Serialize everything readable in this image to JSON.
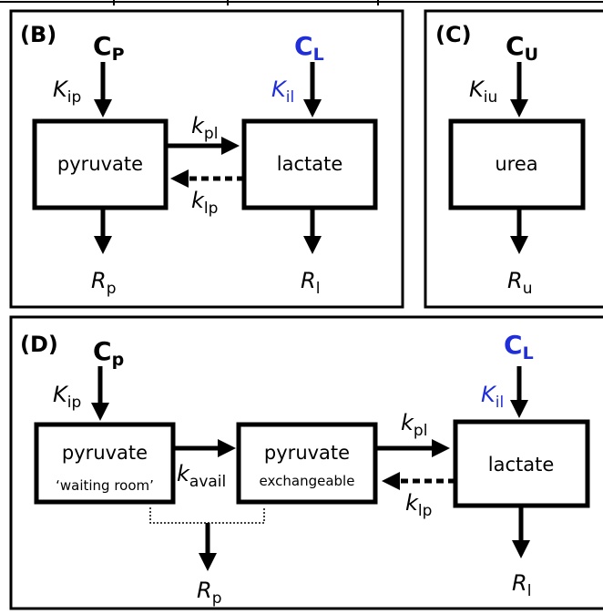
{
  "panel_b": {
    "label": "(B)",
    "pyruvate": {
      "label": "pyruvate",
      "input": {
        "main": "C",
        "sub": "P"
      },
      "input_rate": {
        "main": "K",
        "sub": "ip"
      },
      "output": {
        "main": "R",
        "sub": "p"
      }
    },
    "lactate": {
      "label": "lactate",
      "input": {
        "main": "C",
        "sub": "L"
      },
      "input_rate": {
        "main": "K",
        "sub": "il"
      },
      "output": {
        "main": "R",
        "sub": "l"
      }
    },
    "forward": {
      "main": "k",
      "sub": "pl"
    },
    "backward": {
      "main": "k",
      "sub": "lp"
    }
  },
  "panel_c": {
    "label": "(C)",
    "urea": {
      "label": "urea",
      "input": {
        "main": "C",
        "sub": "U"
      },
      "input_rate": {
        "main": "K",
        "sub": "iu"
      },
      "output": {
        "main": "R",
        "sub": "u"
      }
    }
  },
  "panel_d": {
    "label": "(D)",
    "waiting": {
      "label": "pyruvate",
      "note": "‘waiting room’",
      "input": {
        "main": "C",
        "sub": "p"
      },
      "input_rate": {
        "main": "K",
        "sub": "ip"
      }
    },
    "exchangeable": {
      "label": "pyruvate",
      "note": "exchangeable"
    },
    "avail": {
      "main": "k",
      "sub": "avail"
    },
    "pyruvate_output": {
      "main": "R",
      "sub": "p"
    },
    "lactate": {
      "label": "lactate",
      "input": {
        "main": "C",
        "sub": "L"
      },
      "input_rate": {
        "main": "K",
        "sub": "il"
      },
      "output": {
        "main": "R",
        "sub": "l"
      }
    },
    "forward": {
      "main": "k",
      "sub": "pl"
    },
    "backward": {
      "main": "k",
      "sub": "lp"
    }
  }
}
